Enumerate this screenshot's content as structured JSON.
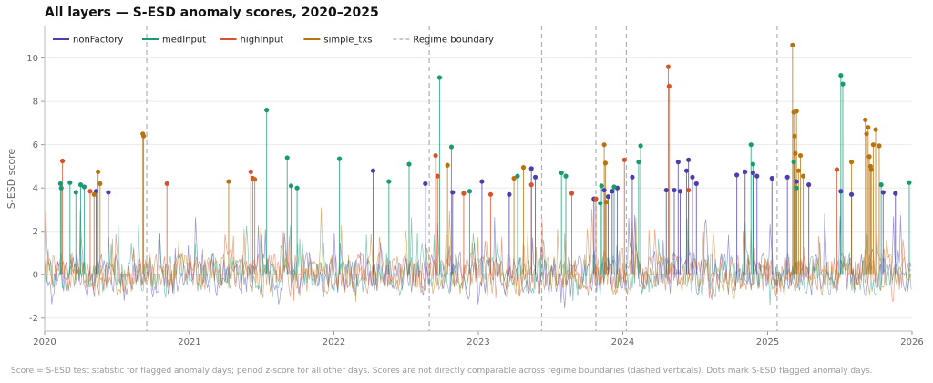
{
  "chart_data": {
    "type": "line",
    "title": "All layers — S-ESD anomaly scores, 2020–2025",
    "xlabel": "",
    "ylabel": "S-ESD score",
    "xlim": [
      "2020-01-01",
      "2026-01-01"
    ],
    "ylim": [
      -2.6,
      11.5
    ],
    "x_ticks": [
      "2020",
      "2021",
      "2022",
      "2023",
      "2024",
      "2025",
      "2026"
    ],
    "y_ticks": [
      -2,
      0,
      2,
      4,
      6,
      8,
      10
    ],
    "grid": "horizontal",
    "legend_position": "top-left",
    "regime_boundary_label": "Regime boundary",
    "regime_boundaries": [
      "2020-09-15",
      "2022-08-30",
      "2023-06-10",
      "2023-10-25",
      "2024-01-10",
      "2025-01-25"
    ],
    "series": [
      {
        "name": "nonFactory",
        "color": "#4b3fae",
        "flagged": [
          [
            "2020-05-10",
            3.85
          ],
          [
            "2020-06-10",
            3.8
          ],
          [
            "2022-04-10",
            4.8
          ],
          [
            "2022-08-20",
            4.2
          ],
          [
            "2022-10-28",
            3.8
          ],
          [
            "2023-01-10",
            4.3
          ],
          [
            "2023-03-20",
            3.7
          ],
          [
            "2023-05-15",
            4.9
          ],
          [
            "2023-05-25",
            4.5
          ],
          [
            "2023-10-20",
            3.5
          ],
          [
            "2023-11-15",
            3.9
          ],
          [
            "2023-11-25",
            3.6
          ],
          [
            "2023-12-05",
            3.85
          ],
          [
            "2023-12-18",
            4.0
          ],
          [
            "2024-01-25",
            4.5
          ],
          [
            "2024-04-20",
            3.9
          ],
          [
            "2024-05-10",
            3.9
          ],
          [
            "2024-05-20",
            5.2
          ],
          [
            "2024-05-25",
            3.85
          ],
          [
            "2024-06-10",
            4.8
          ],
          [
            "2024-06-15",
            5.3
          ],
          [
            "2024-06-25",
            4.5
          ],
          [
            "2024-07-05",
            4.2
          ],
          [
            "2024-10-15",
            4.6
          ],
          [
            "2024-11-05",
            4.75
          ],
          [
            "2024-11-25",
            4.7
          ],
          [
            "2024-12-05",
            4.55
          ],
          [
            "2025-01-12",
            4.45
          ],
          [
            "2025-02-20",
            4.5
          ],
          [
            "2025-03-15",
            4.3
          ],
          [
            "2025-04-15",
            4.15
          ],
          [
            "2025-07-05",
            3.85
          ],
          [
            "2025-08-01",
            3.7
          ],
          [
            "2025-10-20",
            3.8
          ],
          [
            "2025-11-20",
            3.75
          ]
        ]
      },
      {
        "name": "medInput",
        "color": "#1a9a72",
        "flagged": [
          [
            "2020-02-10",
            4.2
          ],
          [
            "2020-02-12",
            4.0
          ],
          [
            "2020-03-05",
            4.25
          ],
          [
            "2020-03-20",
            3.8
          ],
          [
            "2020-04-01",
            4.15
          ],
          [
            "2020-04-10",
            4.05
          ],
          [
            "2021-07-15",
            7.6
          ],
          [
            "2021-09-05",
            5.4
          ],
          [
            "2021-09-15",
            4.1
          ],
          [
            "2021-09-30",
            4.0
          ],
          [
            "2022-01-15",
            5.35
          ],
          [
            "2022-05-20",
            4.3
          ],
          [
            "2022-07-10",
            5.1
          ],
          [
            "2022-09-25",
            9.1
          ],
          [
            "2022-10-25",
            5.9
          ],
          [
            "2022-12-10",
            3.85
          ],
          [
            "2023-04-10",
            4.55
          ],
          [
            "2023-07-30",
            4.7
          ],
          [
            "2023-08-10",
            4.55
          ],
          [
            "2023-11-05",
            3.3
          ],
          [
            "2023-11-08",
            4.1
          ],
          [
            "2023-12-10",
            4.05
          ],
          [
            "2024-02-10",
            5.2
          ],
          [
            "2024-02-15",
            5.95
          ],
          [
            "2024-11-20",
            6.0
          ],
          [
            "2024-11-25",
            5.1
          ],
          [
            "2025-03-08",
            5.2
          ],
          [
            "2025-03-15",
            4.0
          ],
          [
            "2025-07-05",
            9.2
          ],
          [
            "2025-07-10",
            8.8
          ],
          [
            "2025-10-15",
            4.15
          ],
          [
            "2025-12-25",
            4.25
          ]
        ]
      },
      {
        "name": "highInput",
        "color": "#d9532a",
        "flagged": [
          [
            "2020-02-15",
            5.25
          ],
          [
            "2020-04-25",
            3.85
          ],
          [
            "2020-11-05",
            4.2
          ],
          [
            "2021-06-05",
            4.75
          ],
          [
            "2021-06-10",
            4.45
          ],
          [
            "2022-09-15",
            5.5
          ],
          [
            "2022-09-20",
            4.55
          ],
          [
            "2022-11-25",
            3.75
          ],
          [
            "2023-02-01",
            3.7
          ],
          [
            "2023-05-15",
            4.15
          ],
          [
            "2023-08-25",
            3.75
          ],
          [
            "2023-10-25",
            3.5
          ],
          [
            "2024-01-05",
            5.3
          ],
          [
            "2024-04-25",
            9.6
          ],
          [
            "2024-04-27",
            8.7
          ],
          [
            "2024-06-15",
            3.9
          ],
          [
            "2025-06-25",
            4.85
          ]
        ]
      },
      {
        "name": "simple_txs",
        "color": "#b8720e",
        "flagged": [
          [
            "2020-05-05",
            3.7
          ],
          [
            "2020-05-15",
            4.75
          ],
          [
            "2020-05-20",
            4.2
          ],
          [
            "2020-09-05",
            6.5
          ],
          [
            "2020-09-07",
            6.4
          ],
          [
            "2021-04-10",
            4.3
          ],
          [
            "2021-06-15",
            4.4
          ],
          [
            "2022-10-15",
            5.05
          ],
          [
            "2023-04-01",
            4.45
          ],
          [
            "2023-04-25",
            4.95
          ],
          [
            "2023-11-15",
            6.0
          ],
          [
            "2023-11-18",
            5.15
          ],
          [
            "2023-11-20",
            3.35
          ],
          [
            "2025-03-05",
            10.6
          ],
          [
            "2025-03-08",
            7.5
          ],
          [
            "2025-03-10",
            6.4
          ],
          [
            "2025-03-12",
            5.6
          ],
          [
            "2025-03-15",
            7.55
          ],
          [
            "2025-03-20",
            4.8
          ],
          [
            "2025-03-25",
            5.5
          ],
          [
            "2025-04-01",
            4.55
          ],
          [
            "2025-08-01",
            5.2
          ],
          [
            "2025-09-05",
            7.15
          ],
          [
            "2025-09-08",
            6.5
          ],
          [
            "2025-09-12",
            6.8
          ],
          [
            "2025-09-15",
            5.45
          ],
          [
            "2025-09-18",
            5.0
          ],
          [
            "2025-09-20",
            4.85
          ],
          [
            "2025-09-25",
            6.0
          ],
          [
            "2025-10-01",
            6.7
          ],
          [
            "2025-10-10",
            5.95
          ]
        ]
      }
    ]
  },
  "caption": "Score = S-ESD test statistic for flagged anomaly days; period z-score for all other days. Scores are not directly comparable across regime boundaries (dashed verticals). Dots mark S-ESD flagged anomaly days."
}
